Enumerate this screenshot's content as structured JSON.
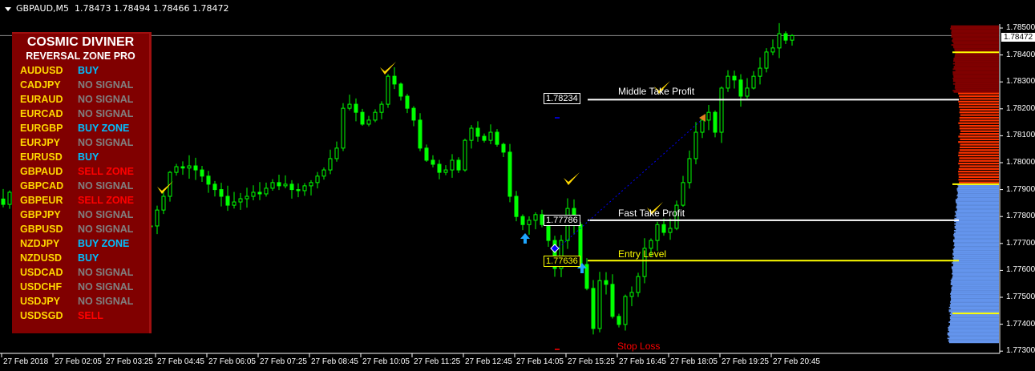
{
  "header": {
    "symbol": "GBPAUD,M5",
    "ohlc": "1.78473 1.78494 1.78466 1.78472"
  },
  "panel": {
    "title": "COSMIC DIVINER",
    "subtitle": "REVERSAL ZONE PRO",
    "colors": {
      "symbol": "#FFD700",
      "BUY": "#00BFFF",
      "BUY ZONE": "#00BFFF",
      "NO SIGNAL": "#808080",
      "SELL": "#FF0000",
      "SELL ZONE": "#FF0000"
    },
    "rows": [
      {
        "symbol": "AUDUSD",
        "signal": "BUY"
      },
      {
        "symbol": "CADJPY",
        "signal": "NO SIGNAL"
      },
      {
        "symbol": "EURAUD",
        "signal": "NO SIGNAL"
      },
      {
        "symbol": "EURCAD",
        "signal": "NO SIGNAL"
      },
      {
        "symbol": "EURGBP",
        "signal": "BUY ZONE"
      },
      {
        "symbol": "EURJPY",
        "signal": "NO SIGNAL"
      },
      {
        "symbol": "EURUSD",
        "signal": "BUY"
      },
      {
        "symbol": "GBPAUD",
        "signal": "SELL ZONE"
      },
      {
        "symbol": "GBPCAD",
        "signal": "NO SIGNAL"
      },
      {
        "symbol": "GBPEUR",
        "signal": "SELL ZONE"
      },
      {
        "symbol": "GBPJPY",
        "signal": "NO SIGNAL"
      },
      {
        "symbol": "GBPUSD",
        "signal": "NO SIGNAL"
      },
      {
        "symbol": "NZDJPY",
        "signal": "BUY ZONE"
      },
      {
        "symbol": "NZDUSD",
        "signal": "BUY"
      },
      {
        "symbol": "USDCAD",
        "signal": "NO SIGNAL"
      },
      {
        "symbol": "USDCHF",
        "signal": "NO SIGNAL"
      },
      {
        "symbol": "USDJPY",
        "signal": "NO SIGNAL"
      },
      {
        "symbol": "USDSGD",
        "signal": "SELL"
      }
    ]
  },
  "levels": {
    "middle_tp": {
      "label": "Middle Take Profit",
      "price": "1.78234",
      "color": "#FFFFFF"
    },
    "fast_tp": {
      "label": "Fast Take Profit",
      "price": "1.77786",
      "color": "#FFFFFF"
    },
    "entry": {
      "label": "Entry Level",
      "price": "1.77636",
      "color": "#FFFF00"
    },
    "stop_loss": {
      "label": "Stop Loss",
      "color": "#FF0000"
    }
  },
  "current_price": "1.78472",
  "price_axis": [
    "1.78500",
    "1.78400",
    "1.78300",
    "1.78200",
    "1.78100",
    "1.78000",
    "1.77900",
    "1.77800",
    "1.77700",
    "1.77600",
    "1.77500",
    "1.77400",
    "1.77300"
  ],
  "time_axis": [
    "27 Feb 2018",
    "27 Feb 02:05",
    "27 Feb 03:25",
    "27 Feb 04:45",
    "27 Feb 06:05",
    "27 Feb 07:25",
    "27 Feb 08:45",
    "27 Feb 10:05",
    "27 Feb 11:25",
    "27 Feb 12:45",
    "27 Feb 14:05",
    "27 Feb 15:25",
    "27 Feb 16:45",
    "27 Feb 18:05",
    "27 Feb 19:25",
    "27 Feb 20:45"
  ],
  "zones": {
    "sell_zone": {
      "from": 1.7826,
      "to": 1.7851,
      "color": "#800000"
    },
    "mid_zone": {
      "from": 1.7792,
      "to": 1.7826,
      "color": "#FF3300"
    },
    "buy_zone": {
      "from": 1.7733,
      "to": 1.7792,
      "color": "#6495ED"
    },
    "zone_lines": [
      1.7841,
      1.7792,
      1.7744
    ]
  },
  "chart_data": {
    "type": "candlestick",
    "candle_color": "#00FF00",
    "closes": [
      1.77845,
      1.7789,
      1.77875,
      1.7786,
      1.77845,
      1.7783,
      1.77824,
      1.77815,
      1.77807,
      1.778,
      1.77795,
      1.77786,
      1.7777,
      1.77765,
      1.7776,
      1.77756,
      1.77753,
      1.7775,
      1.77747,
      1.7775,
      1.77753,
      1.77756,
      1.77765,
      1.77765,
      1.77824,
      1.77875,
      1.77964,
      1.77985,
      1.7798,
      1.77988,
      1.77973,
      1.7795,
      1.7792,
      1.779,
      1.77875,
      1.77842,
      1.77854,
      1.77866,
      1.77875,
      1.7789,
      1.77884,
      1.77905,
      1.77926,
      1.77914,
      1.7792,
      1.779,
      1.77896,
      1.77914,
      1.77926,
      1.7795,
      1.77973,
      1.78015,
      1.78054,
      1.78202,
      1.78217,
      1.78187,
      1.78143,
      1.78158,
      1.78187,
      1.78217,
      1.78321,
      1.78292,
      1.78247,
      1.78202,
      1.78158,
      1.78054,
      1.78009,
      1.77994,
      1.77964,
      1.77973,
      1.78009,
      1.77973,
      1.78083,
      1.78128,
      1.78098,
      1.78083,
      1.78113,
      1.78068,
      1.78039,
      1.77875,
      1.778,
      1.7777,
      1.77786,
      1.77807,
      1.7777,
      1.77711,
      1.77607,
      1.77711,
      1.7783,
      1.7777,
      1.77622,
      1.77533,
      1.77384,
      1.77562,
      1.77548,
      1.77429,
      1.77399,
      1.77503,
      1.77518,
      1.77577,
      1.77682,
      1.77711,
      1.7777,
      1.77741,
      1.77756,
      1.77842,
      1.77926,
      1.78015,
      1.78113,
      1.78158,
      1.78187,
      1.78113,
      1.78277,
      1.78321,
      1.78307,
      1.78247,
      1.78277,
      1.78321,
      1.78351,
      1.78411,
      1.78426,
      1.78479,
      1.78455,
      1.78472
    ],
    "ylim": [
      1.7726,
      1.7852
    ]
  }
}
